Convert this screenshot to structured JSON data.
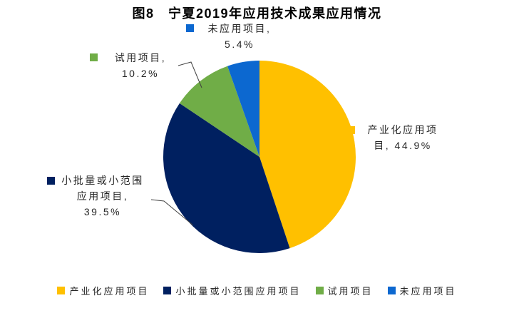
{
  "title": "图8　宁夏2019年应用技术成果应用情况",
  "chart_data": {
    "type": "pie",
    "title": "图8　宁夏2019年应用技术成果应用情况",
    "start_angle_deg": 0,
    "direction": "clockwise",
    "slices": [
      {
        "id": "industrialized-application",
        "label": "产业化应用项目",
        "value": 44.9,
        "color": "#FFC000"
      },
      {
        "id": "small-batch-or-small-scope",
        "label": "小批量或小范围应用项目",
        "value": 39.5,
        "color": "#002060"
      },
      {
        "id": "trial",
        "label": "试用项目",
        "value": 10.2,
        "color": "#70AD47"
      },
      {
        "id": "unapplied",
        "label": "未应用项目",
        "value": 5.4,
        "color": "#0C68D0"
      }
    ],
    "data_labels": [
      {
        "text": "产业化应用项目, 44.9%",
        "slice": 0
      },
      {
        "text": "小批量或小范围应用项目, 39.5%",
        "slice": 1
      },
      {
        "text": "试用项目, 10.2%",
        "slice": 2
      },
      {
        "text": "未应用项目, 5.4%",
        "slice": 3
      }
    ],
    "legend": {
      "position": "bottom",
      "items": [
        "产业化应用项目",
        "小批量或小范围应用项目",
        "试用项目",
        "未应用项目"
      ]
    }
  }
}
